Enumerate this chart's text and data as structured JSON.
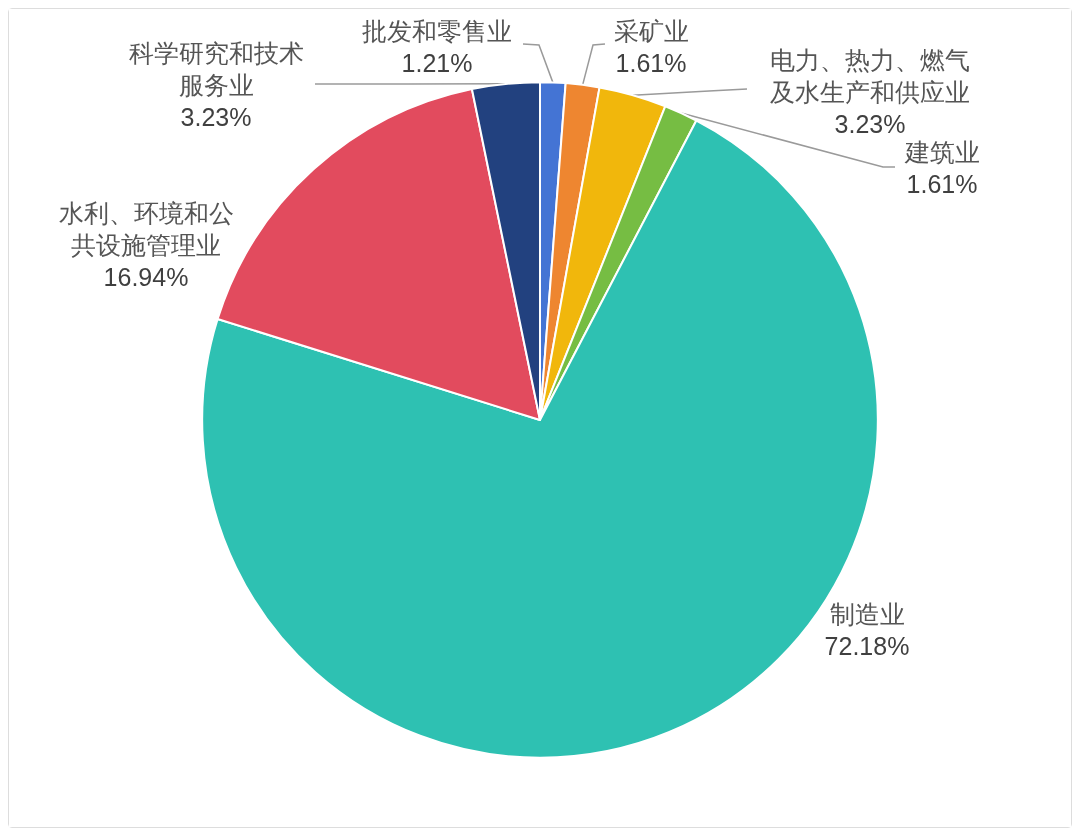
{
  "chart_data": {
    "type": "pie",
    "categories": [
      "批发和零售业",
      "采矿业",
      "电力、热力、燃气及水生产和供应业",
      "建筑业",
      "制造业",
      "水利、环境和公共设施管理业",
      "科学研究和技术服务业"
    ],
    "values": [
      1.21,
      1.61,
      3.23,
      1.61,
      72.18,
      16.94,
      3.23
    ],
    "value_labels": [
      "1.21%",
      "1.61%",
      "3.23%",
      "1.61%",
      "72.18%",
      "16.94%",
      "3.23%"
    ],
    "colors": [
      "#4474d4",
      "#ee8630",
      "#f1b70c",
      "#76bd43",
      "#2ec1b2",
      "#e24b5e",
      "#22417f"
    ],
    "legend": false
  }
}
